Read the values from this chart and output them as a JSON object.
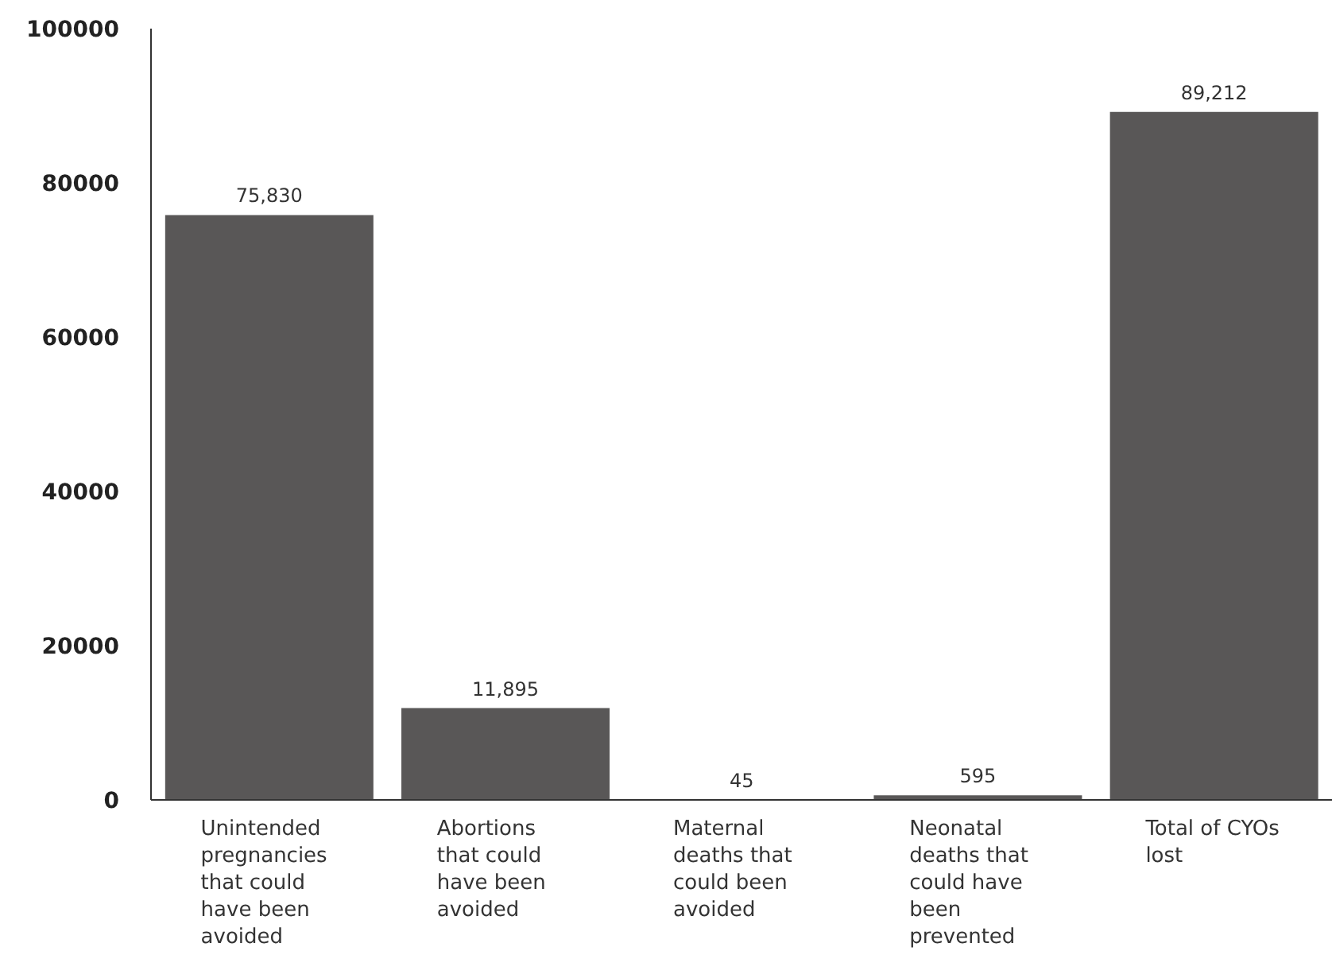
{
  "chart_data": {
    "type": "bar",
    "categories": [
      "Unintended pregnancies that could have been avoided",
      "Abortions that could have been avoided",
      "Maternal deaths that could been avoided",
      "Neonatal deaths that could have been prevented",
      "Total of CYOs lost"
    ],
    "values": [
      75830,
      11895,
      45,
      595,
      89212
    ],
    "value_labels": [
      "75,830",
      "11,895",
      "45",
      "595",
      "89,212"
    ],
    "color": "#595757",
    "ylim": [
      0,
      100000
    ],
    "yticks": [
      0,
      20000,
      40000,
      60000,
      80000,
      100000
    ],
    "grid": false,
    "legend": false
  }
}
